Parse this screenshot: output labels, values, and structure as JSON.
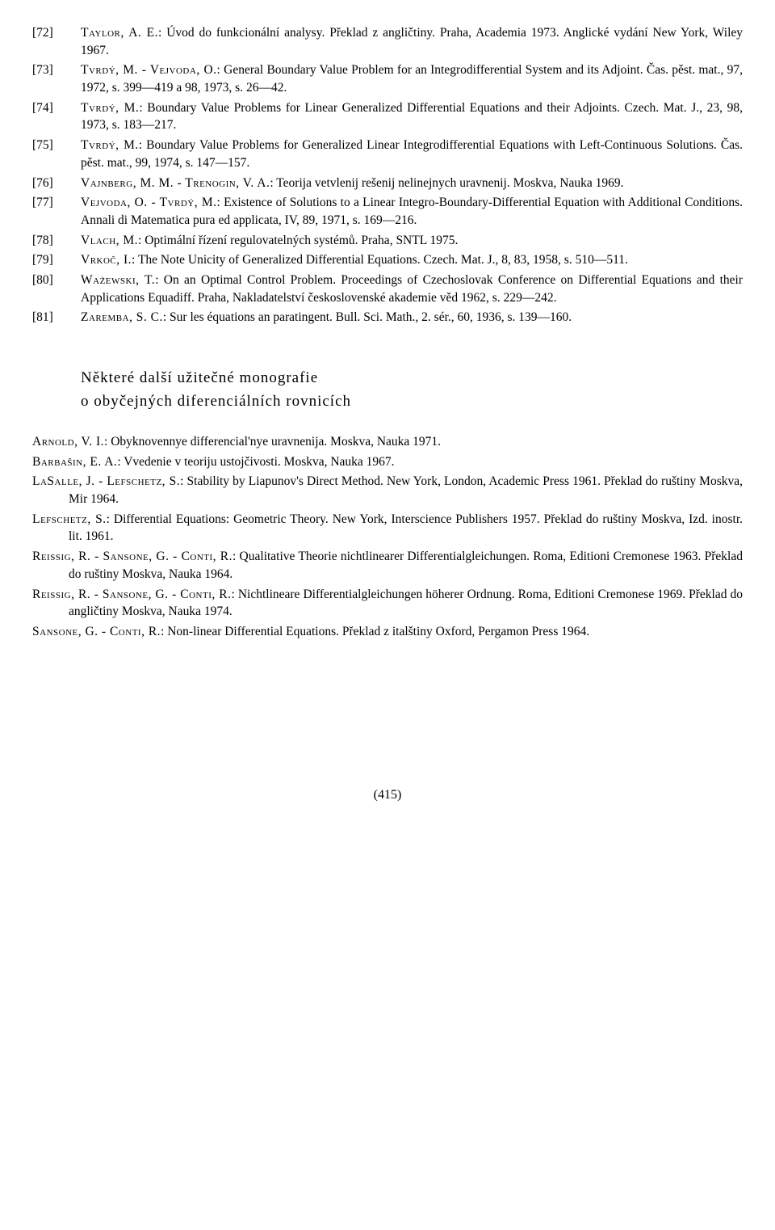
{
  "references": [
    {
      "num": "[72]",
      "author": "Taylor, A. E.",
      "text": ": Úvod do funkcionální analysy. Překlad z angličtiny. Praha, Academia 1973. Anglické vydání New York, Wiley 1967."
    },
    {
      "num": "[73]",
      "author": "Tvrdý, M. - Vejvoda, O.",
      "text": ": General Boundary Value Problem for an Integrodifferential System and its Adjoint. Čas. pěst. mat., 97, 1972, s. 399—419 a 98, 1973, s. 26—42."
    },
    {
      "num": "[74]",
      "author": "Tvrdý, M.",
      "text": ": Boundary Value Problems for Linear Generalized Differential Equations and their Adjoints. Czech. Mat. J., 23, 98, 1973, s. 183—217."
    },
    {
      "num": "[75]",
      "author": "Tvrdý, M.",
      "text": ": Boundary Value Problems for Generalized Linear Integrodifferential Equations with Left-Continuous Solutions. Čas. pěst. mat., 99, 1974, s. 147—157."
    },
    {
      "num": "[76]",
      "author": "Vajnberg, M. M. - Trenogin, V. A.",
      "text": ": Teorija vetvlenij rešenij nelinejnych uravnenij. Moskva, Nauka 1969."
    },
    {
      "num": "[77]",
      "author": "Vejvoda, O. - Tvrdý, M.",
      "text": ": Existence of Solutions to a Linear Integro-Boundary-Differential Equation with Additional Conditions. Annali di Matematica pura ed applicata, IV, 89, 1971, s. 169—216."
    },
    {
      "num": "[78]",
      "author": "Vlach, M.",
      "text": ": Optimální řízení regulovatelných systémů. Praha, SNTL 1975."
    },
    {
      "num": "[79]",
      "author": "Vrkoč, I.",
      "text": ": The Note Unicity of Generalized Differential Equations. Czech. Mat. J., 8, 83, 1958, s. 510—511."
    },
    {
      "num": "[80]",
      "author": "Ważewski, T.",
      "text": ": On an Optimal Control Problem. Proceedings of Czechoslovak Conference on Differential Equations and their Applications Equadiff. Praha, Nakladatelství československé akademie věd 1962, s. 229—242."
    },
    {
      "num": "[81]",
      "author": "Zaremba, S. C.",
      "text": ": Sur les équations an paratingent. Bull. Sci. Math., 2. sér., 60, 1936, s. 139—160."
    }
  ],
  "sectionHeading": {
    "line1": "Některé další užitečné monografie",
    "line2": "o obyčejných diferenciálních rovnicích"
  },
  "monographs": [
    {
      "author": "Arnold, V. I.",
      "text": ": Obyknovennye differencial'nye uravnenija. Moskva, Nauka 1971."
    },
    {
      "author": "Barbašin, E. A.",
      "text": ": Vvedenie v teoriju ustojčivosti. Moskva, Nauka 1967."
    },
    {
      "author": "LaSalle, J. - Lefschetz, S.",
      "text": ": Stability by Liapunov's Direct Method. New York, London, Academic Press 1961. Překlad do ruštiny Moskva, Mir 1964."
    },
    {
      "author": "Lefschetz, S.",
      "text": ": Differential Equations: Geometric Theory. New York, Interscience Publishers 1957. Překlad do ruštiny Moskva, Izd. inostr. lit. 1961."
    },
    {
      "author": "Reissig, R. - Sansone, G. - Conti, R.",
      "text": ": Qualitative Theorie nichtlinearer Differentialgleichungen. Roma, Editioni Cremonese 1963. Překlad do ruštiny Moskva, Nauka 1964."
    },
    {
      "author": "Reissig, R. - Sansone, G. - Conti, R.",
      "text": ": Nichtlineare Differentialgleichungen höherer Ordnung. Roma, Editioni Cremonese 1969. Překlad do angličtiny Moskva, Nauka 1974."
    },
    {
      "author": "Sansone, G. - Conti, R.",
      "text": ": Non-linear Differential Equations. Překlad z italštiny Oxford, Pergamon Press 1964."
    }
  ],
  "pageNumber": "(415)"
}
